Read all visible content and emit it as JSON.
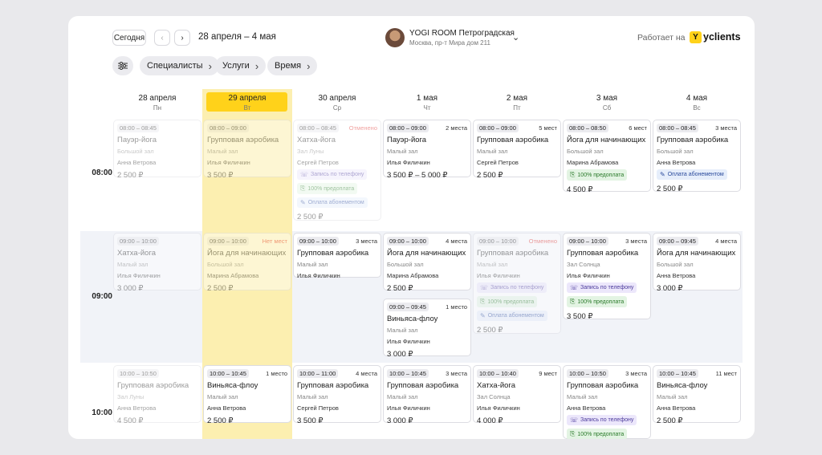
{
  "toolbar": {
    "today_label": "Сегодня",
    "date_range": "28 апреля – 4 мая",
    "prev_icon": "chevron-left-icon",
    "next_icon": "chevron-right-icon"
  },
  "studio": {
    "name": "YOGI ROOM Петроградская",
    "address": "Москва, пр-т Мира дом 211",
    "dropdown_icon": "chevron-down-icon"
  },
  "brand": {
    "powered_label": "Работает на",
    "logo_text": "yclients",
    "logo_letter": "Y",
    "accent": "#ffd21a"
  },
  "filters": {
    "settings_icon": "sliders-icon",
    "items": [
      {
        "label": "Специалисты"
      },
      {
        "label": "Услуги"
      },
      {
        "label": "Время"
      }
    ]
  },
  "days": [
    {
      "date": "28 апреля",
      "weekday": "Пн"
    },
    {
      "date": "29 апреля",
      "weekday": "Вт",
      "today": true
    },
    {
      "date": "30 апреля",
      "weekday": "Ср"
    },
    {
      "date": "1 мая",
      "weekday": "Чт"
    },
    {
      "date": "2 мая",
      "weekday": "Пт"
    },
    {
      "date": "3 мая",
      "weekday": "Сб"
    },
    {
      "date": "4 мая",
      "weekday": "Вс"
    }
  ],
  "time_rows": [
    "08:00",
    "09:00",
    "10:00"
  ],
  "events": [
    {
      "day": 0,
      "row": 0,
      "time": "08:00 – 08:45",
      "title": "Пауэр-йога",
      "room": "Большой зал",
      "trainer": "Анна Ветрова",
      "price": "2 500 ₽",
      "faded": true
    },
    {
      "day": 1,
      "row": 0,
      "time": "08:00 – 09:00",
      "title": "Групповая аэробика",
      "room": "Малый зал",
      "trainer": "Илья Филичкин",
      "price": "3 500 ₽",
      "faded": true
    },
    {
      "day": 2,
      "row": 0,
      "time": "08:00 – 08:45",
      "status": "Отменено",
      "status_red": true,
      "title": "Хатха-йога",
      "room": "Зал Луны",
      "trainer": "Сергей Петров",
      "tags": [
        "phone",
        "prepay",
        "sub"
      ],
      "price": "2 500 ₽",
      "faded": true
    },
    {
      "day": 3,
      "row": 0,
      "time": "08:00 – 09:00",
      "status": "2 места",
      "title": "Пауэр-йога",
      "room": "Малый зал",
      "trainer": "Илья Филичкин",
      "price": "3 500 ₽ – 5 000 ₽"
    },
    {
      "day": 4,
      "row": 0,
      "time": "08:00 – 09:00",
      "status": "5 мест",
      "title": "Групповая аэробика",
      "room": "Малый зал",
      "trainer": "Сергей Петров",
      "price": "2 500 ₽"
    },
    {
      "day": 5,
      "row": 0,
      "time": "08:00 – 08:50",
      "status": "6 мест",
      "title": "Йога для начинающих",
      "room": "Большой зал",
      "trainer": "Марина Абрамова",
      "tags": [
        "prepay"
      ],
      "price": "4 500 ₽"
    },
    {
      "day": 6,
      "row": 0,
      "time": "08:00 – 08:45",
      "status": "3 места",
      "title": "Групповая аэробика",
      "room": "Большой зал",
      "trainer": "Анна Ветрова",
      "tags": [
        "sub"
      ],
      "price": "2 500 ₽"
    },
    {
      "day": 0,
      "row": 1,
      "time": "09:00 – 10:00",
      "title": "Хатха-йога",
      "room": "Малый зал",
      "trainer": "Илья Филичкин",
      "price": "3 000 ₽",
      "faded": true
    },
    {
      "day": 1,
      "row": 1,
      "time": "09:00 – 10:00",
      "status": "Нет мест",
      "status_red": true,
      "title": "Йога для начинающих",
      "room": "Большой зал",
      "trainer": "Марина Абрамова",
      "price": "2 500 ₽",
      "faded": true
    },
    {
      "day": 2,
      "row": 1,
      "time": "09:00 – 10:00",
      "status": "3 места",
      "title": "Групповая аэробика",
      "room": "Малый зал",
      "trainer": "Илья Филичкин"
    },
    {
      "day": 3,
      "row": 1,
      "time": "09:00 – 10:00",
      "status": "4 места",
      "title": "Йога для начинающих",
      "room": "Большой зал",
      "trainer": "Марина Абрамова",
      "price": "2 500 ₽"
    },
    {
      "day": 3,
      "row": 1,
      "sub": 1,
      "time": "09:00 – 09:45",
      "status": "1 место",
      "title": "Виньяса-флоу",
      "room": "Малый зал",
      "trainer": "Илья Филичкин",
      "price": "3 000 ₽"
    },
    {
      "day": 4,
      "row": 1,
      "time": "09:00 – 10:00",
      "status": "Отменено",
      "status_red": true,
      "title": "Групповая аэробика",
      "room": "Малый зал",
      "trainer": "Илья Филичкин",
      "tags": [
        "phone",
        "prepay",
        "sub"
      ],
      "price": "2 500 ₽",
      "faded": true
    },
    {
      "day": 5,
      "row": 1,
      "time": "09:00 – 10:00",
      "status": "3 места",
      "title": "Групповая аэробика",
      "room": "Зал Солнца",
      "trainer": "Илья Филичкин",
      "tags": [
        "phone",
        "prepay"
      ],
      "price": "3 500 ₽"
    },
    {
      "day": 6,
      "row": 1,
      "time": "09:00 – 09:45",
      "status": "4 места",
      "title": "Йога для начинающих",
      "room": "Большой зал",
      "trainer": "Анна Ветрова",
      "price": "3 000 ₽"
    },
    {
      "day": 0,
      "row": 2,
      "time": "10:00 – 10:50",
      "title": "Групповая аэробика",
      "room": "Зал Луны",
      "trainer": "Анна Ветрова",
      "price": "4 500 ₽",
      "faded": true
    },
    {
      "day": 1,
      "row": 2,
      "time": "10:00 – 10:45",
      "status": "1 место",
      "title": "Виньяса-флоу",
      "room": "Малый зал",
      "trainer": "Анна Ветрова",
      "price": "2 500 ₽"
    },
    {
      "day": 2,
      "row": 2,
      "time": "10:00 – 11:00",
      "status": "4 места",
      "title": "Групповая аэробика",
      "room": "Малый зал",
      "trainer": "Сергей Петров",
      "price": "3 500 ₽"
    },
    {
      "day": 3,
      "row": 2,
      "time": "10:00 – 10:45",
      "status": "3 места",
      "title": "Групповая аэробика",
      "room": "Малый зал",
      "trainer": "Илья Филичкин",
      "price": "3 000 ₽"
    },
    {
      "day": 4,
      "row": 2,
      "time": "10:00 – 10:40",
      "status": "9 мест",
      "title": "Хатха-йога",
      "room": "Зал Солнца",
      "trainer": "Илья Филичкин",
      "price": "4 000 ₽"
    },
    {
      "day": 5,
      "row": 2,
      "time": "10:00 – 10:50",
      "status": "3 места",
      "title": "Групповая аэробика",
      "room": "Малый зал",
      "trainer": "Анна Ветрова",
      "tags": [
        "phone",
        "prepay"
      ]
    },
    {
      "day": 6,
      "row": 2,
      "time": "10:00 – 10:45",
      "status": "11 мест",
      "title": "Виньяса-флоу",
      "room": "Малый зал",
      "trainer": "Анна Ветрова",
      "price": "2 500 ₽"
    }
  ],
  "tag_labels": {
    "phone": {
      "label": "Запись по телефону",
      "icon": "phone-icon"
    },
    "prepay": {
      "label": "100% предоплата",
      "icon": "prepay-icon"
    },
    "sub": {
      "label": "Оплата абонементом",
      "icon": "ticket-icon"
    }
  }
}
